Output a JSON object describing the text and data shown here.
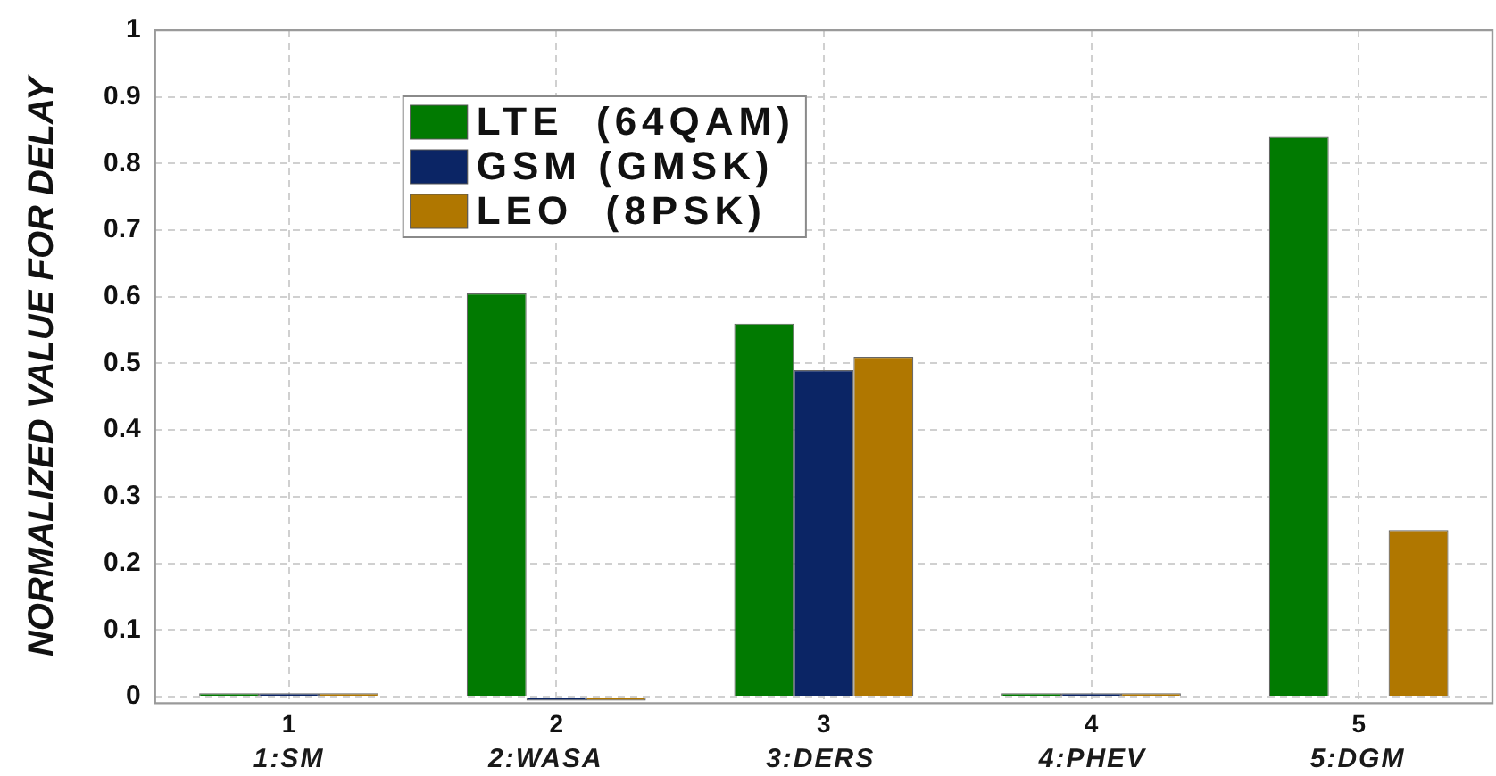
{
  "chart_data": {
    "type": "bar",
    "xlabel": "1:SM 2:WASA 3:DERS 4:PHEV 5:DGM",
    "ylabel": "NORMALIZED VALUE FOR DELAY",
    "categories": [
      "1",
      "2",
      "3",
      "4",
      "5"
    ],
    "series": [
      {
        "name": "LTE  (64QAM)",
        "color": "#017a01",
        "values": [
          0.005,
          0.605,
          0.56,
          0.005,
          0.84
        ]
      },
      {
        "name": "GSM (GMSK)",
        "color": "#0b2565",
        "values": [
          0.005,
          -0.006,
          0.49,
          0.005,
          0
        ]
      },
      {
        "name": "LEO  (8PSK)",
        "color": "#b07700",
        "values": [
          0.005,
          -0.006,
          0.51,
          0.005,
          0.25
        ]
      }
    ],
    "ylim": [
      -0.01,
      1
    ],
    "yticks": [
      0,
      0.1,
      0.2,
      0.3,
      0.4,
      0.5,
      0.6,
      0.7,
      0.8,
      0.9,
      1
    ],
    "grid": true,
    "legend": "top left"
  }
}
